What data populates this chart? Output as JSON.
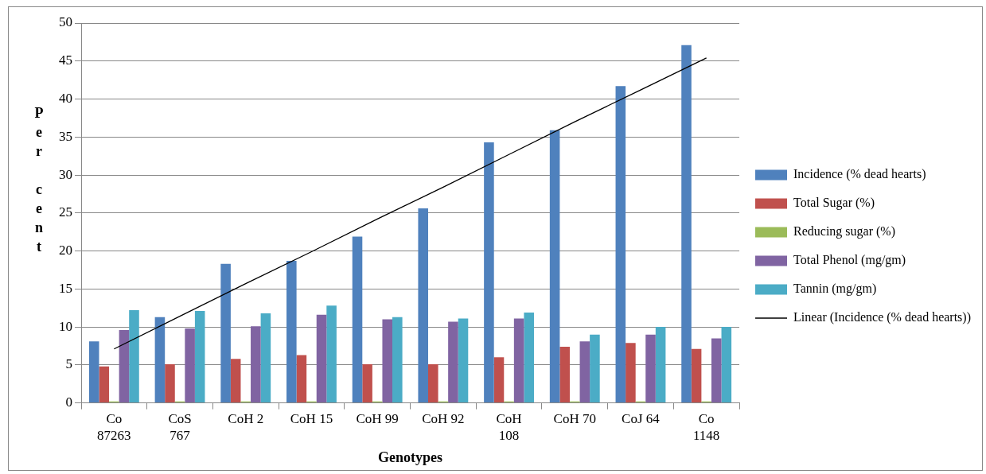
{
  "chart_data": {
    "type": "bar",
    "xlabel": "Genotypes",
    "ylabel": "Per cent",
    "categories": [
      "Co 87263",
      "CoS 767",
      "CoH 2",
      "CoH 15",
      "CoH 99",
      "CoH 92",
      "CoH 108",
      "CoH 70",
      "CoJ 64",
      "Co 1148"
    ],
    "series": [
      {
        "name": "Incidence (% dead hearts)",
        "color": "#4f81bd",
        "values": [
          8.1,
          11.3,
          18.3,
          18.7,
          21.9,
          25.6,
          34.3,
          35.9,
          41.7,
          47.1
        ]
      },
      {
        "name": "Total Sugar (%)",
        "color": "#c0504d",
        "values": [
          4.8,
          5.1,
          5.8,
          6.3,
          5.1,
          5.1,
          6.0,
          7.4,
          7.9,
          7.1
        ]
      },
      {
        "name": "Reducing sugar (%)",
        "color": "#9bbb59",
        "values": [
          0.2,
          0.2,
          0.2,
          0.2,
          0.2,
          0.2,
          0.2,
          0.2,
          0.2,
          0.2
        ]
      },
      {
        "name": "Total Phenol (mg/gm)",
        "color": "#8064a2",
        "values": [
          9.6,
          9.8,
          10.1,
          11.6,
          11.0,
          10.7,
          11.1,
          8.1,
          9.0,
          8.5
        ]
      },
      {
        "name": "Tannin (mg/gm)",
        "color": "#4bacc6",
        "values": [
          12.2,
          12.1,
          11.8,
          12.8,
          11.3,
          11.1,
          11.9,
          9.0,
          10.0,
          10.0
        ]
      },
      {
        "name": "Linear (Incidence (% dead hearts))",
        "type": "line",
        "color": "#000000",
        "values": [
          7.1,
          11.4,
          15.7,
          19.9,
          24.2,
          28.4,
          32.7,
          37.0,
          41.2,
          45.4
        ]
      }
    ],
    "ylim": [
      0,
      50
    ],
    "yticks": [
      0,
      5,
      10,
      15,
      20,
      25,
      30,
      35,
      40,
      45,
      50
    ],
    "grid": "y",
    "legend": "right",
    "marker": "none"
  }
}
